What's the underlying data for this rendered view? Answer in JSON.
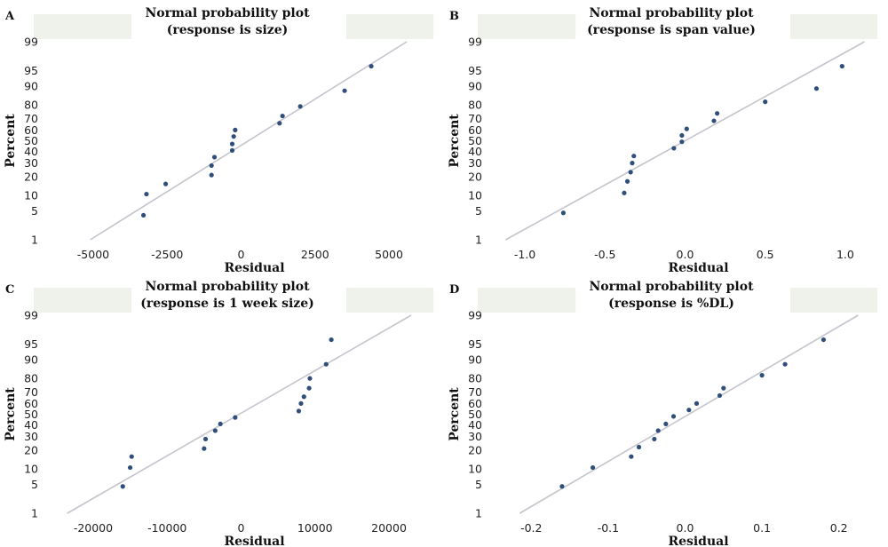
{
  "chart_data": [
    {
      "type": "scatter",
      "panel_label": "A",
      "title": "Normal probability plot",
      "subtitle": "(response is size)",
      "xlabel": "Residual",
      "ylabel": "Percent",
      "xlim": [
        -6500,
        6500
      ],
      "x_ticks": [
        -5000,
        -2500,
        0,
        2500,
        5000
      ],
      "x_tick_labels": [
        "-5000",
        "-2500",
        "0",
        "2500",
        "5000"
      ],
      "y_scale": "normal-probability",
      "y_ticks": [
        1,
        5,
        10,
        20,
        30,
        40,
        50,
        60,
        70,
        80,
        90,
        95,
        99
      ],
      "y_tick_labels": [
        "1",
        "5",
        "10",
        "20",
        "30",
        "40",
        "50",
        "60",
        "70",
        "80",
        "90",
        "95",
        "99"
      ],
      "fit_line": [
        [
          -5100,
          1
        ],
        [
          5600,
          99
        ]
      ],
      "points": [
        {
          "x": -3300,
          "y": 4
        },
        {
          "x": -3200,
          "y": 10.5
        },
        {
          "x": -2550,
          "y": 15.5
        },
        {
          "x": -1000,
          "y": 21
        },
        {
          "x": -1000,
          "y": 28
        },
        {
          "x": -900,
          "y": 35
        },
        {
          "x": -300,
          "y": 41
        },
        {
          "x": -300,
          "y": 47
        },
        {
          "x": -250,
          "y": 54
        },
        {
          "x": -200,
          "y": 60
        },
        {
          "x": 1300,
          "y": 66
        },
        {
          "x": 1400,
          "y": 72
        },
        {
          "x": 2000,
          "y": 79
        },
        {
          "x": 3500,
          "y": 88
        },
        {
          "x": 4400,
          "y": 96
        }
      ]
    },
    {
      "type": "scatter",
      "panel_label": "B",
      "title": "Normal probability plot",
      "subtitle": "(response is span value)",
      "xlabel": "Residual",
      "ylabel": "Percent",
      "xlim": [
        -1.2,
        1.2
      ],
      "x_ticks": [
        -1.0,
        -0.5,
        0.0,
        0.5,
        1.0
      ],
      "x_tick_labels": [
        "-1.0",
        "-0.5",
        "0.0",
        "0.5",
        "1.0"
      ],
      "y_scale": "normal-probability",
      "y_ticks": [
        1,
        5,
        10,
        20,
        30,
        40,
        50,
        60,
        70,
        80,
        90,
        95,
        99
      ],
      "y_tick_labels": [
        "1",
        "5",
        "10",
        "20",
        "30",
        "40",
        "50",
        "60",
        "70",
        "80",
        "90",
        "95",
        "99"
      ],
      "fit_line": [
        [
          -1.12,
          1
        ],
        [
          1.12,
          99
        ]
      ],
      "points": [
        {
          "x": -0.76,
          "y": 4.5
        },
        {
          "x": -0.38,
          "y": 11
        },
        {
          "x": -0.36,
          "y": 17
        },
        {
          "x": -0.34,
          "y": 23
        },
        {
          "x": -0.33,
          "y": 30
        },
        {
          "x": -0.32,
          "y": 36
        },
        {
          "x": -0.07,
          "y": 43
        },
        {
          "x": -0.02,
          "y": 49
        },
        {
          "x": -0.02,
          "y": 55
        },
        {
          "x": 0.01,
          "y": 61
        },
        {
          "x": 0.18,
          "y": 68
        },
        {
          "x": 0.2,
          "y": 74
        },
        {
          "x": 0.5,
          "y": 82
        },
        {
          "x": 0.82,
          "y": 89
        },
        {
          "x": 0.98,
          "y": 96
        }
      ]
    },
    {
      "type": "scatter",
      "panel_label": "C",
      "title": "Normal probability plot",
      "subtitle": "(response is 1 week size)",
      "xlabel": "Residual",
      "ylabel": "Percent",
      "xlim": [
        -26000,
        26000
      ],
      "x_ticks": [
        -20000,
        -10000,
        0,
        10000,
        20000
      ],
      "x_tick_labels": [
        "-20000",
        "-10000",
        "0",
        "10000",
        "20000"
      ],
      "y_scale": "normal-probability",
      "y_ticks": [
        1,
        5,
        10,
        20,
        30,
        40,
        50,
        60,
        70,
        80,
        90,
        95,
        99
      ],
      "y_tick_labels": [
        "1",
        "5",
        "10",
        "20",
        "30",
        "40",
        "50",
        "60",
        "70",
        "80",
        "90",
        "95",
        "99"
      ],
      "fit_line": [
        [
          -23500,
          1
        ],
        [
          23000,
          99
        ]
      ],
      "points": [
        {
          "x": -16000,
          "y": 4.5
        },
        {
          "x": -15000,
          "y": 10.5
        },
        {
          "x": -14800,
          "y": 16
        },
        {
          "x": -5000,
          "y": 21
        },
        {
          "x": -4800,
          "y": 28
        },
        {
          "x": -3500,
          "y": 35
        },
        {
          "x": -2800,
          "y": 41
        },
        {
          "x": -800,
          "y": 47
        },
        {
          "x": 7800,
          "y": 53
        },
        {
          "x": 8100,
          "y": 60
        },
        {
          "x": 8500,
          "y": 66
        },
        {
          "x": 9200,
          "y": 73
        },
        {
          "x": 9300,
          "y": 80
        },
        {
          "x": 11500,
          "y": 88
        },
        {
          "x": 12200,
          "y": 96
        }
      ]
    },
    {
      "type": "scatter",
      "panel_label": "D",
      "title": "Normal probability plot",
      "subtitle": "(response is %DL)",
      "xlabel": "Residual",
      "ylabel": "Percent",
      "xlim": [
        -0.25,
        0.25
      ],
      "x_ticks": [
        -0.2,
        -0.1,
        0.0,
        0.1,
        0.2
      ],
      "x_tick_labels": [
        "-0.2",
        "-0.1",
        "0.0",
        "0.1",
        "0.2"
      ],
      "y_scale": "normal-probability",
      "y_ticks": [
        1,
        5,
        10,
        20,
        30,
        40,
        50,
        60,
        70,
        80,
        90,
        95,
        99
      ],
      "y_tick_labels": [
        "1",
        "5",
        "10",
        "20",
        "30",
        "40",
        "50",
        "60",
        "70",
        "80",
        "90",
        "95",
        "99"
      ],
      "fit_line": [
        [
          -0.215,
          1
        ],
        [
          0.225,
          99
        ]
      ],
      "points": [
        {
          "x": -0.16,
          "y": 4.5
        },
        {
          "x": -0.12,
          "y": 10.5
        },
        {
          "x": -0.07,
          "y": 16
        },
        {
          "x": -0.06,
          "y": 22
        },
        {
          "x": -0.04,
          "y": 28
        },
        {
          "x": -0.035,
          "y": 35
        },
        {
          "x": -0.025,
          "y": 41
        },
        {
          "x": -0.015,
          "y": 48
        },
        {
          "x": 0.005,
          "y": 54
        },
        {
          "x": 0.015,
          "y": 60
        },
        {
          "x": 0.045,
          "y": 67
        },
        {
          "x": 0.05,
          "y": 73
        },
        {
          "x": 0.1,
          "y": 82
        },
        {
          "x": 0.13,
          "y": 88
        },
        {
          "x": 0.18,
          "y": 96
        }
      ]
    }
  ],
  "colors": {
    "point": "#2f4f7a",
    "fit_line": "#c4c4cc",
    "frame_shade": "#eef2ea"
  }
}
